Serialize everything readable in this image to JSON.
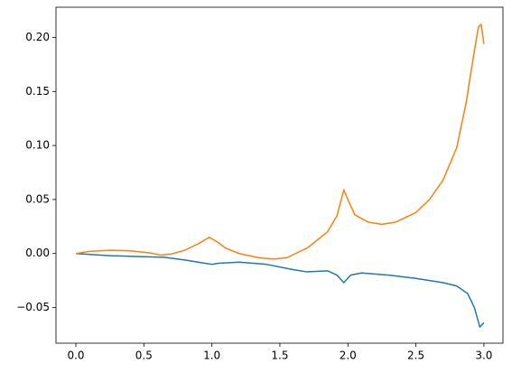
{
  "chart_data": {
    "type": "line",
    "series": [
      {
        "color": "#1f77b4",
        "x": [
          0,
          0.25,
          0.5,
          0.65,
          0.8,
          0.95,
          1.0,
          1.05,
          1.2,
          1.4,
          1.6,
          1.7,
          1.85,
          1.92,
          1.97,
          2.02,
          2.1,
          2.3,
          2.5,
          2.7,
          2.8,
          2.88,
          2.93,
          2.97,
          3.0
        ],
        "values": [
          0,
          -0.002,
          -0.003,
          -0.0035,
          -0.006,
          -0.009,
          -0.01,
          -0.009,
          -0.008,
          -0.01,
          -0.015,
          -0.017,
          -0.016,
          -0.02,
          -0.027,
          -0.02,
          -0.018,
          -0.02,
          -0.023,
          -0.027,
          -0.03,
          -0.037,
          -0.05,
          -0.068,
          -0.064
        ]
      },
      {
        "color": "#ff7f0e",
        "x": [
          0,
          0.1,
          0.25,
          0.4,
          0.55,
          0.62,
          0.7,
          0.8,
          0.9,
          0.98,
          1.05,
          1.1,
          1.2,
          1.35,
          1.45,
          1.55,
          1.7,
          1.85,
          1.92,
          1.97,
          2.0,
          2.05,
          2.15,
          2.25,
          2.35,
          2.5,
          2.6,
          2.7,
          2.8,
          2.87,
          2.92,
          2.96,
          2.98,
          3.0
        ],
        "values": [
          0,
          0.002,
          0.003,
          0.0025,
          0.0005,
          -0.0015,
          -0.0005,
          0.003,
          0.009,
          0.015,
          0.01,
          0.005,
          0.0,
          -0.004,
          -0.005,
          -0.004,
          0.005,
          0.02,
          0.035,
          0.059,
          0.05,
          0.036,
          0.029,
          0.027,
          0.029,
          0.038,
          0.05,
          0.068,
          0.098,
          0.14,
          0.18,
          0.21,
          0.212,
          0.194
        ]
      }
    ],
    "xlim": [
      -0.146,
      3.14
    ],
    "ylim": [
      -0.083,
      0.228
    ],
    "xticks": [
      {
        "value": 0,
        "label": "0.0"
      },
      {
        "value": 0.5,
        "label": "0.5"
      },
      {
        "value": 1,
        "label": "1.0"
      },
      {
        "value": 1.5,
        "label": "1.5"
      },
      {
        "value": 2,
        "label": "2.0"
      },
      {
        "value": 2.5,
        "label": "2.5"
      },
      {
        "value": 3,
        "label": "3.0"
      }
    ],
    "yticks": [
      {
        "value": -0.05,
        "label": "−0.05"
      },
      {
        "value": 0,
        "label": "0.00"
      },
      {
        "value": 0.05,
        "label": "0.05"
      },
      {
        "value": 0.1,
        "label": "0.10"
      },
      {
        "value": 0.15,
        "label": "0.15"
      },
      {
        "value": 0.2,
        "label": "0.20"
      }
    ],
    "grid": false
  }
}
